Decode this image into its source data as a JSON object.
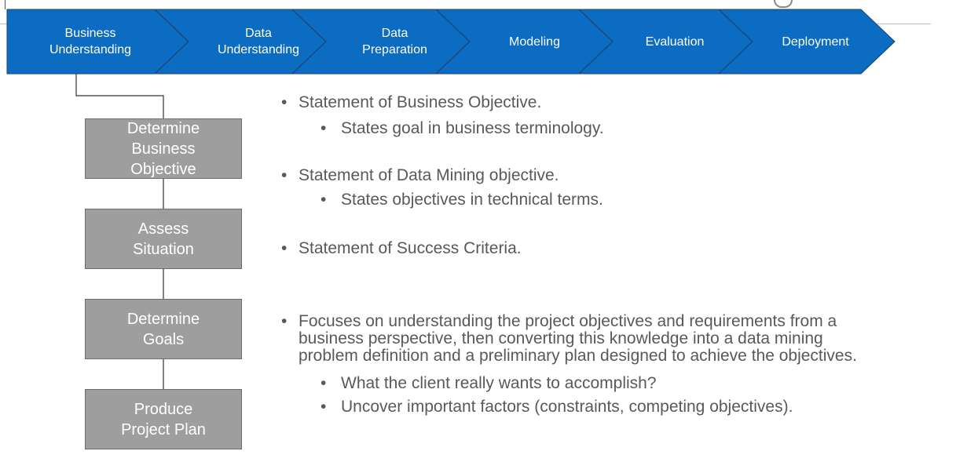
{
  "process_bar": {
    "phases": [
      {
        "label": "Business\nUnderstanding"
      },
      {
        "label": "Data\nUnderstanding"
      },
      {
        "label": "Data\nPreparation"
      },
      {
        "label": "Modeling"
      },
      {
        "label": "Evaluation"
      },
      {
        "label": "Deployment"
      }
    ],
    "color": "#0b6cc1",
    "outline": "#1c3f6e"
  },
  "steps": [
    {
      "label": "Determine\nBusiness\nObjective"
    },
    {
      "label": "Assess\nSituation"
    },
    {
      "label": "Determine\nGoals"
    },
    {
      "label": "Produce\nProject Plan"
    }
  ],
  "bullets": {
    "b1": "Statement of Business Objective.",
    "b1_sub": "States goal in business terminology.",
    "b2": "Statement of Data Mining objective.",
    "b2_sub": "States objectives in technical terms.",
    "b3": "Statement of Success Criteria.",
    "b4_line1": "Focuses on understanding the project objectives and requirements from a",
    "b4_line2": "business perspective, then converting this knowledge into a data mining",
    "b4_line3": "problem definition and a preliminary plan designed to achieve the objectives.",
    "b4_sub1": "What the client really wants to accomplish?",
    "b4_sub2": "Uncover important factors (constraints, competing objectives).",
    "bullet_glyph": "•"
  }
}
